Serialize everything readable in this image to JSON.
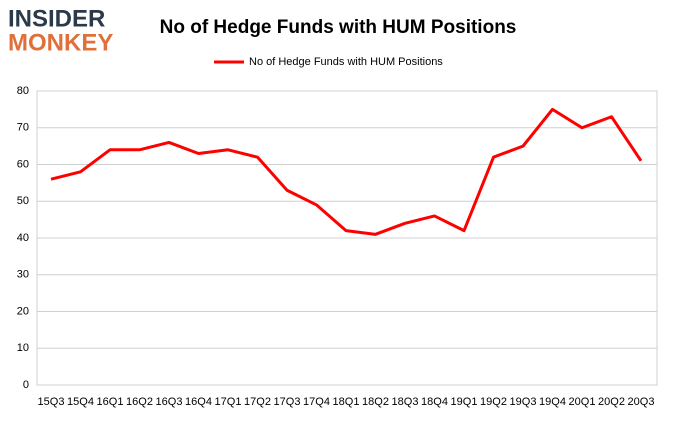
{
  "chart_data": {
    "type": "line",
    "title": "No of Hedge Funds with HUM Positions",
    "logo_top": "INSIDER",
    "logo_bottom": "MONKEY",
    "categories": [
      "15Q3",
      "15Q4",
      "16Q1",
      "16Q2",
      "16Q3",
      "16Q4",
      "17Q1",
      "17Q2",
      "17Q3",
      "17Q4",
      "18Q1",
      "18Q2",
      "18Q3",
      "18Q4",
      "19Q1",
      "19Q2",
      "19Q3",
      "19Q4",
      "20Q1",
      "20Q2",
      "20Q3"
    ],
    "series": [
      {
        "name": "No of Hedge Funds with HUM Positions",
        "color": "#ff0000",
        "values": [
          56,
          58,
          64,
          64,
          66,
          63,
          64,
          62,
          53,
          49,
          42,
          41,
          44,
          46,
          42,
          62,
          65,
          75,
          70,
          73,
          61
        ]
      }
    ],
    "ylim": [
      0,
      80
    ],
    "yticks": [
      0,
      10,
      20,
      30,
      40,
      50,
      60,
      70,
      80
    ],
    "grid": true,
    "legend": "top"
  }
}
